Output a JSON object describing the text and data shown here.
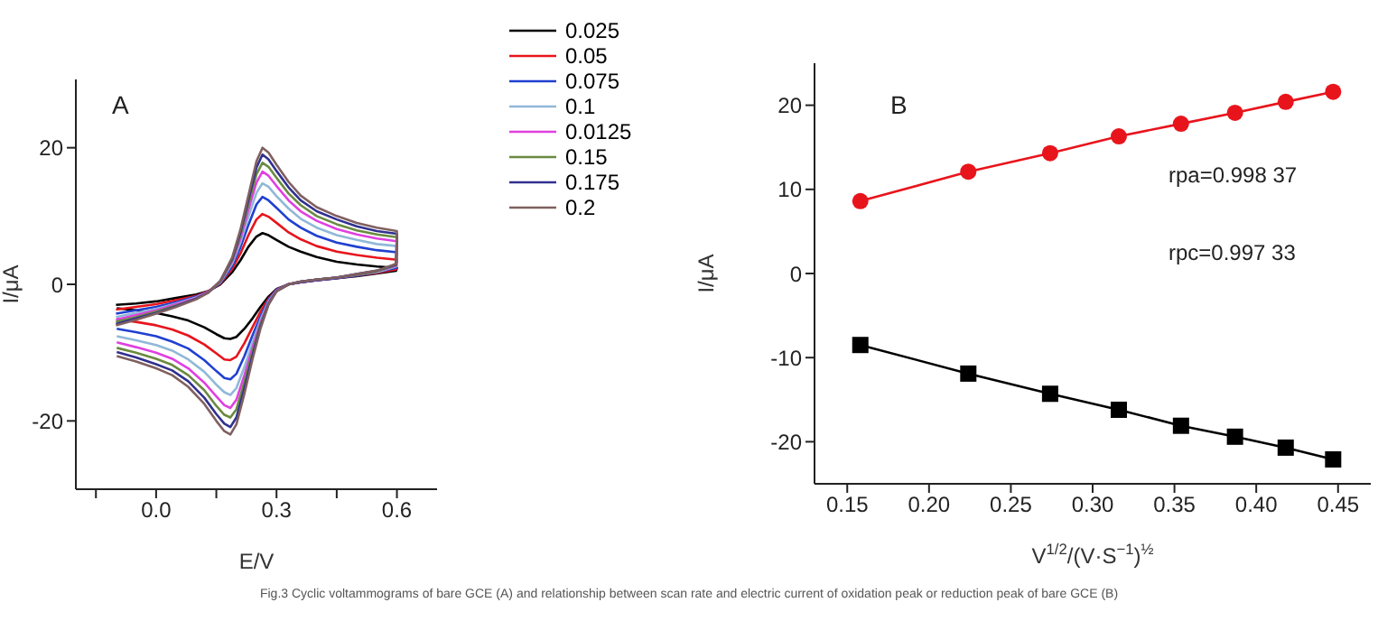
{
  "chart_data": [
    {
      "type": "line",
      "title": "A",
      "xlabel": "E/V",
      "ylabel": "I/μA",
      "annotations": [
        "Fig.3 Cyclic voltammograms of bare GCE (A) and relationship between scan rate and electric current of oxidation peak or reduction peak of bare GCE (B)"
      ],
      "x": [
        -0.1,
        -0.05,
        0,
        0.05,
        0.1,
        0.13,
        0.16,
        0.19,
        0.21,
        0.23,
        0.25,
        0.265,
        0.28,
        0.3,
        0.33,
        0.36,
        0.4,
        0.45,
        0.5,
        0.55,
        0.6,
        0.598,
        0.55,
        0.5,
        0.45,
        0.4,
        0.36,
        0.33,
        0.3,
        0.28,
        0.26,
        0.24,
        0.22,
        0.2,
        0.185,
        0.17,
        0.15,
        0.12,
        0.08,
        0.04,
        0,
        -0.05,
        -0.098
      ],
      "xlim": [
        -0.2,
        0.7
      ],
      "xticks": [
        {
          "value": -0.15,
          "label": null
        },
        {
          "value": 0,
          "label": "0.0"
        },
        {
          "value": 0.15,
          "label": null
        },
        {
          "value": 0.3,
          "label": "0.3"
        },
        {
          "value": 0.45,
          "label": null
        },
        {
          "value": 0.6,
          "label": "0.6"
        }
      ],
      "ylim": [
        -30,
        30
      ],
      "yticks": [
        -20,
        0,
        20
      ],
      "legend": "top right",
      "marker": "none",
      "line_style": "solid",
      "series": [
        {
          "name": "0.025",
          "color": "#000000",
          "values": [
            -3,
            -2.8,
            -2.5,
            -2,
            -1.5,
            -1,
            0,
            1.8,
            3.5,
            5.5,
            7,
            7.5,
            7.2,
            6.5,
            5.5,
            4.8,
            4,
            3.3,
            2.9,
            2.6,
            2.4,
            2,
            1.6,
            1.2,
            0.9,
            0.6,
            0.3,
            0,
            -0.7,
            -1.8,
            -3.3,
            -5,
            -6.5,
            -7.7,
            -8,
            -7.9,
            -7.3,
            -6.3,
            -5.3,
            -4.7,
            -4.2,
            -3.8,
            -3.5
          ]
        },
        {
          "name": "0.05",
          "color": "#e8141c",
          "values": [
            -3.7,
            -3.3,
            -2.9,
            -2.3,
            -1.7,
            -1,
            0.1,
            2.3,
            4.5,
            7.2,
            9.5,
            10.3,
            9.9,
            9,
            7.6,
            6.6,
            5.6,
            4.8,
            4.3,
            3.9,
            3.6,
            2.2,
            1.7,
            1.3,
            0.9,
            0.6,
            0.3,
            0,
            -0.8,
            -2.1,
            -4,
            -6.3,
            -8.6,
            -10.6,
            -11.1,
            -11,
            -10.1,
            -8.8,
            -7.5,
            -6.6,
            -6,
            -5.5,
            -5.1
          ]
        },
        {
          "name": "0.075",
          "color": "#2040d0",
          "values": [
            -4.3,
            -3.8,
            -3.3,
            -2.6,
            -1.8,
            -1.1,
            0.2,
            2.7,
            5.4,
            8.7,
            11.7,
            12.8,
            12.3,
            11.2,
            9.5,
            8.3,
            7.1,
            6.1,
            5.5,
            5,
            4.7,
            2.4,
            1.8,
            1.3,
            0.9,
            0.6,
            0.3,
            0,
            -0.8,
            -2.3,
            -4.7,
            -7.5,
            -10.5,
            -13.1,
            -13.9,
            -13.7,
            -12.7,
            -11.1,
            -9.4,
            -8.4,
            -7.6,
            -7,
            -6.5
          ]
        },
        {
          "name": "0.1",
          "color": "#90b8d8",
          "values": [
            -4.8,
            -4.2,
            -3.6,
            -2.8,
            -1.9,
            -1.1,
            0.3,
            3.1,
            6.1,
            9.9,
            13.4,
            14.8,
            14.3,
            12.9,
            11.1,
            9.6,
            8.3,
            7.2,
            6.5,
            5.9,
            5.6,
            2.6,
            1.8,
            1.4,
            1,
            0.7,
            0.4,
            0,
            -0.9,
            -2.5,
            -5.2,
            -8.5,
            -12.1,
            -15.2,
            -16.2,
            -15.8,
            -14.7,
            -12.8,
            -11,
            -9.7,
            -8.9,
            -8.2,
            -7.6
          ]
        },
        {
          "name": "0.0125",
          "color": "#e040e0",
          "values": [
            -5.2,
            -4.5,
            -3.8,
            -2.9,
            -2,
            -1.1,
            0.4,
            3.4,
            6.7,
            10.9,
            14.9,
            16.5,
            15.9,
            14.4,
            12.3,
            10.7,
            9.3,
            8.1,
            7.3,
            6.7,
            6.3,
            2.7,
            1.9,
            1.4,
            1,
            0.7,
            0.4,
            0,
            -0.9,
            -2.7,
            -5.6,
            -9.3,
            -13.3,
            -16.9,
            -18.1,
            -17.7,
            -16.4,
            -14.4,
            -12.3,
            -10.9,
            -10,
            -9.2,
            -8.5
          ]
        },
        {
          "name": "0.15",
          "color": "#6a8a40",
          "values": [
            -5.5,
            -4.8,
            -4,
            -3.1,
            -2.1,
            -1.2,
            0.4,
            3.6,
            7.2,
            11.7,
            16.1,
            17.8,
            17.2,
            15.6,
            13.3,
            11.6,
            10,
            8.8,
            7.9,
            7.3,
            6.9,
            2.8,
            1.9,
            1.4,
            1,
            0.7,
            0.4,
            0,
            -1,
            -2.8,
            -5.9,
            -9.9,
            -14.3,
            -18.3,
            -19.5,
            -19.1,
            -17.8,
            -15.5,
            -13.3,
            -11.8,
            -10.9,
            -10,
            -9.3
          ]
        },
        {
          "name": "0.175",
          "color": "#303090",
          "values": [
            -5.8,
            -5,
            -4.2,
            -3.2,
            -2.1,
            -1.2,
            0.5,
            3.8,
            7.6,
            12.4,
            17.1,
            19,
            18.3,
            16.6,
            14.2,
            12.3,
            10.7,
            9.5,
            8.5,
            7.8,
            7.4,
            2.9,
            2,
            1.5,
            1,
            0.7,
            0.4,
            0,
            -1,
            -2.9,
            -6.2,
            -10.5,
            -15.2,
            -19.5,
            -20.9,
            -20.4,
            -19,
            -16.6,
            -14.2,
            -12.6,
            -11.7,
            -10.7,
            -9.9
          ]
        },
        {
          "name": "0.2",
          "color": "#806060",
          "values": [
            -6,
            -5.2,
            -4.3,
            -3.3,
            -2.2,
            -1.2,
            0.5,
            4,
            8,
            13,
            18,
            20,
            19.3,
            17.5,
            15,
            13,
            11.3,
            10,
            9,
            8.3,
            7.8,
            3,
            2,
            1.5,
            1,
            0.7,
            0.4,
            0,
            -1,
            -3,
            -6.5,
            -11,
            -16,
            -20.5,
            -22,
            -21.5,
            -20,
            -17.5,
            -15,
            -13.3,
            -12.3,
            -11.3,
            -10.5
          ]
        }
      ]
    },
    {
      "type": "line",
      "title": "B",
      "xlabel": "V$^{1/2}$/(V·S$^{−1}$)$^{½}$",
      "ylabel": "I/μA",
      "annotations": [
        "rpa=0.998 37",
        "rpc=0.997 33"
      ],
      "x": [
        0.158,
        0.224,
        0.274,
        0.316,
        0.354,
        0.387,
        0.418,
        0.447
      ],
      "xlim": [
        0.13,
        0.47
      ],
      "xticks": [
        0.15,
        {
          "value": 0.2,
          "label": "0.20"
        },
        0.25,
        {
          "value": 0.3,
          "label": "0.30"
        },
        0.35,
        {
          "value": 0.4,
          "label": "0.40"
        },
        0.45
      ],
      "ylim": [
        -25,
        25
      ],
      "yticks": [
        -20,
        -10,
        0,
        10,
        20
      ],
      "line_style": "solid",
      "series": [
        {
          "color": "#e8141c",
          "marker": "circle",
          "values": [
            8.6,
            12.1,
            14.3,
            16.3,
            17.8,
            19.1,
            20.4,
            21.6
          ]
        },
        {
          "color": "#000000",
          "marker": "square",
          "values": [
            -8.5,
            -11.9,
            -14.3,
            -16.2,
            -18.1,
            -19.4,
            -20.7,
            -22.1
          ]
        }
      ]
    }
  ]
}
